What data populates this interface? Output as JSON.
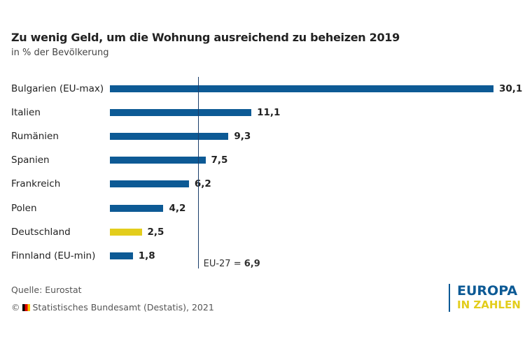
{
  "chart_data": {
    "type": "bar",
    "orientation": "horizontal",
    "title": "Zu wenig Geld, um die Wohnung ausreichend zu beheizen 2019",
    "subtitle": "in % der Bevölkerung",
    "categories": [
      "Bulgarien (EU-max)",
      "Italien",
      "Rumänien",
      "Spanien",
      "Frankreich",
      "Polen",
      "Deutschland",
      "Finnland (EU-min)"
    ],
    "values": [
      30.1,
      11.1,
      9.3,
      7.5,
      6.2,
      4.2,
      2.5,
      1.8
    ],
    "labels": [
      "30,1",
      "11,1",
      "9,3",
      "7,5",
      "6,2",
      "4,2",
      "2,5",
      "1,8"
    ],
    "highlight_index": 6,
    "colors": {
      "bar": "#0d5a95",
      "highlight": "#e3cd1c",
      "reference_line": "#1a3d6b"
    },
    "reference": {
      "value": 6.9,
      "label_prefix": "EU-27 = ",
      "label_value": "6,9"
    },
    "grid": false
  },
  "footer": {
    "source": "Quelle: Eurostat",
    "copyright_symbol": "©",
    "copyright": "Statistisches Bundesamt (Destatis), 2021"
  },
  "logo": {
    "line1": "EUROPA",
    "line2": "IN ZAHLEN"
  }
}
